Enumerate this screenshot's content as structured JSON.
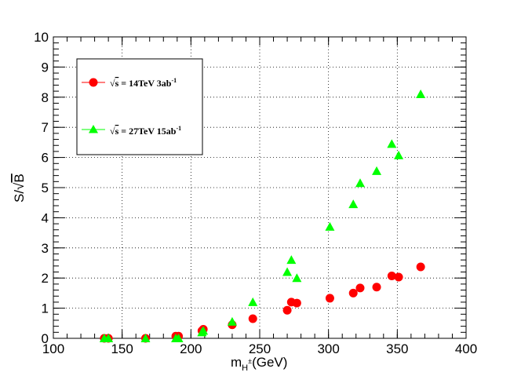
{
  "chart_data": {
    "type": "scatter",
    "xlabel_main": "m",
    "xlabel_sub": "H",
    "xlabel_sup": "±",
    "xlabel_unit": "(GeV)",
    "ylabel_prefix": "S/",
    "ylabel_root": "√",
    "ylabel_var": "B",
    "xlim": [
      100,
      400
    ],
    "ylim": [
      0,
      10
    ],
    "x_ticks": [
      "100",
      "150",
      "200",
      "250",
      "300",
      "350",
      "400"
    ],
    "y_ticks": [
      "0",
      "1",
      "2",
      "3",
      "4",
      "5",
      "6",
      "7",
      "8",
      "9",
      "10"
    ],
    "grid": true,
    "legend_position": "top-left",
    "series": [
      {
        "label_root": "√",
        "label_var": "s",
        "label_text": " = 14TeV 3ab",
        "label_sup": "-1",
        "color": "#ff0000",
        "marker": "circle",
        "x": [
          137,
          140,
          167,
          189,
          191,
          208,
          209,
          230,
          245,
          270,
          273,
          277,
          301,
          318,
          323,
          335,
          346,
          351,
          367
        ],
        "y": [
          0.0,
          0.0,
          0.0,
          0.07,
          0.07,
          0.25,
          0.3,
          0.45,
          0.65,
          0.93,
          1.2,
          1.17,
          1.33,
          1.5,
          1.67,
          1.7,
          2.07,
          2.03,
          2.37
        ]
      },
      {
        "label_root": "√",
        "label_var": "s",
        "label_text": " = 27TeV 15ab",
        "label_sup": "-1",
        "color": "#00ff00",
        "marker": "triangle",
        "x": [
          137,
          140,
          167,
          189,
          191,
          208,
          209,
          230,
          245,
          270,
          273,
          277,
          301,
          318,
          323,
          335,
          346,
          351,
          367
        ],
        "y": [
          0.0,
          0.0,
          0.0,
          0.0,
          0.0,
          0.2,
          0.25,
          0.55,
          1.2,
          2.2,
          2.6,
          2.0,
          3.7,
          4.45,
          5.15,
          5.55,
          6.45,
          6.07,
          8.1
        ]
      }
    ]
  }
}
